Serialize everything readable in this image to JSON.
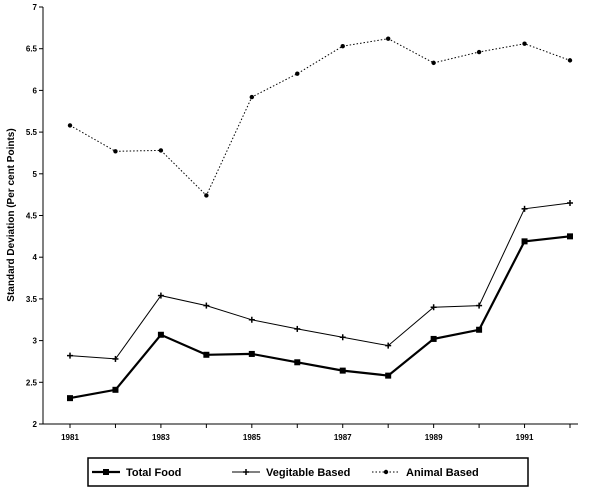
{
  "chart_data": {
    "type": "line",
    "title": "",
    "xlabel": "",
    "ylabel": "Standard Deviation (Per cent Points)",
    "x": [
      1981,
      1982,
      1983,
      1984,
      1985,
      1986,
      1987,
      1988,
      1989,
      1990,
      1991,
      1992
    ],
    "x_tick_labels": [
      "1981",
      "1983",
      "1985",
      "1987",
      "1989",
      "1991"
    ],
    "x_tick_values": [
      1981,
      1983,
      1985,
      1987,
      1989,
      1991
    ],
    "ylim": [
      2,
      7
    ],
    "y_ticks": [
      2,
      2.5,
      3,
      3.5,
      4,
      4.5,
      5,
      5.5,
      6,
      6.5,
      7
    ],
    "y_tick_labels": [
      "2",
      "2.5",
      "3",
      "3.5",
      "4",
      "4.5",
      "5",
      "5.5",
      "6",
      "6.5",
      "7"
    ],
    "grid": false,
    "legend_position": "bottom",
    "series": [
      {
        "name": "Total Food",
        "values": [
          2.31,
          2.41,
          3.07,
          2.83,
          2.84,
          2.74,
          2.64,
          2.58,
          3.02,
          3.13,
          4.19,
          4.25
        ],
        "line_style": "solid-thick",
        "marker": "square"
      },
      {
        "name": "Vegitable Based",
        "values": [
          2.82,
          2.78,
          3.54,
          3.42,
          3.25,
          3.14,
          3.04,
          2.94,
          3.4,
          3.42,
          4.58,
          4.65
        ],
        "line_style": "solid-thin",
        "marker": "plus"
      },
      {
        "name": "Animal Based",
        "values": [
          5.58,
          5.27,
          5.28,
          4.74,
          5.92,
          6.2,
          6.53,
          6.62,
          6.33,
          6.46,
          6.56,
          6.36
        ],
        "line_style": "dotted",
        "marker": "dot"
      }
    ]
  }
}
